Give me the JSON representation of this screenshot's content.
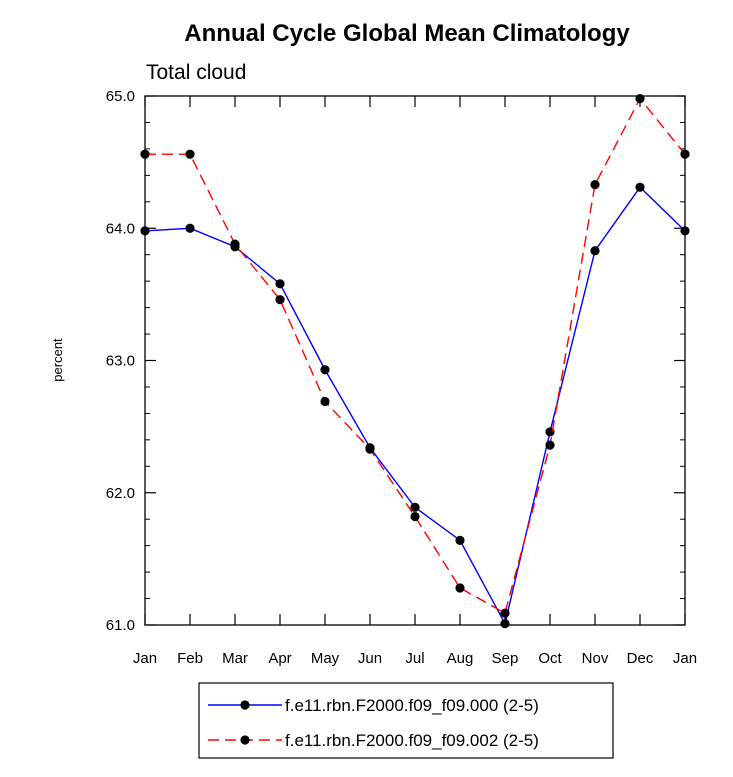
{
  "chart_data": {
    "type": "line",
    "title": "Annual Cycle Global Mean Climatology",
    "subtitle": "Total cloud",
    "xlabel": "",
    "ylabel": "percent",
    "categories": [
      "Jan",
      "Feb",
      "Mar",
      "Apr",
      "May",
      "Jun",
      "Jul",
      "Aug",
      "Sep",
      "Oct",
      "Nov",
      "Dec",
      "Jan"
    ],
    "ylim": [
      61.0,
      65.0
    ],
    "yticks": [
      "61.0",
      "62.0",
      "63.0",
      "64.0",
      "65.0"
    ],
    "series": [
      {
        "name": "f.e11.rbn.F2000.f09_f09.000 (2-5)",
        "color": "#0000ff",
        "dash": "solid",
        "values": [
          63.98,
          64.0,
          63.86,
          63.58,
          62.93,
          62.34,
          61.89,
          61.64,
          61.01,
          62.46,
          63.83,
          64.31,
          63.98
        ]
      },
      {
        "name": "f.e11.rbn.F2000.f09_f09.002 (2-5)",
        "color": "#ff0000",
        "dash": "dashed",
        "values": [
          64.56,
          64.56,
          63.88,
          63.46,
          62.69,
          62.33,
          61.82,
          61.28,
          61.09,
          62.36,
          64.33,
          64.98,
          64.56
        ]
      }
    ],
    "legend_position": "bottom"
  }
}
